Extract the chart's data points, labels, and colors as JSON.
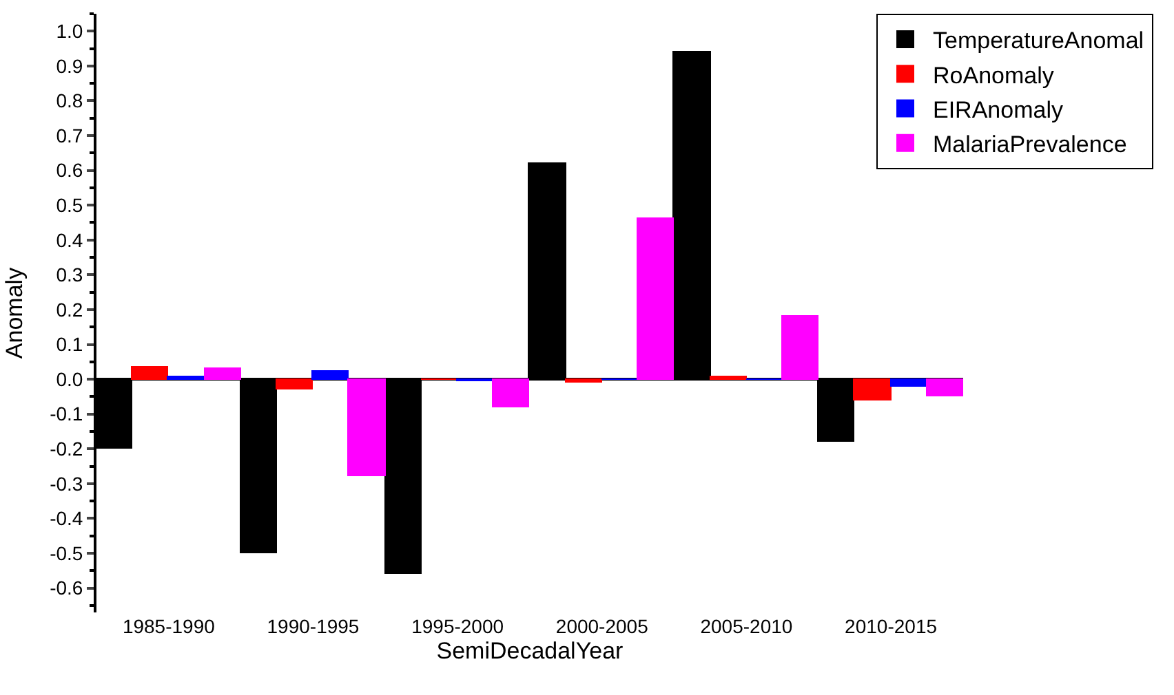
{
  "chart_data": {
    "type": "bar",
    "xlabel": "SemiDecadalYear",
    "ylabel": "Anomaly",
    "categories": [
      "1985-1990",
      "1990-1995",
      "1995-2000",
      "2000-2005",
      "2005-2010",
      "2010-2015"
    ],
    "series": [
      {
        "name": "TemperatureAnomal",
        "color": "#000000",
        "values": [
          -0.2,
          -0.5,
          -0.56,
          0.62,
          0.94,
          -0.18
        ]
      },
      {
        "name": "RoAnomaly",
        "color": "#ff0000",
        "values": [
          0.035,
          -0.03,
          0.0,
          -0.01,
          0.005,
          -0.06
        ]
      },
      {
        "name": "EIRAnomaly",
        "color": "#0000ff",
        "values": [
          0.005,
          0.02,
          -0.005,
          0.0,
          0.0,
          -0.02
        ]
      },
      {
        "name": "MalariaPrevalence",
        "color": "#ff00ff",
        "values": [
          0.03,
          -0.28,
          -0.08,
          0.46,
          0.18,
          -0.05
        ]
      }
    ],
    "ylim": [
      -0.67,
      1.05
    ],
    "yticks": [
      -0.6,
      -0.5,
      -0.4,
      -0.3,
      -0.2,
      -0.1,
      {
        "value": 0,
        "label": "0.0"
      },
      0.1,
      0.2,
      0.3,
      0.4,
      0.5,
      0.6,
      0.7,
      0.8,
      0.9,
      {
        "value": 1,
        "label": "1.0"
      }
    ],
    "legend": "top right"
  }
}
